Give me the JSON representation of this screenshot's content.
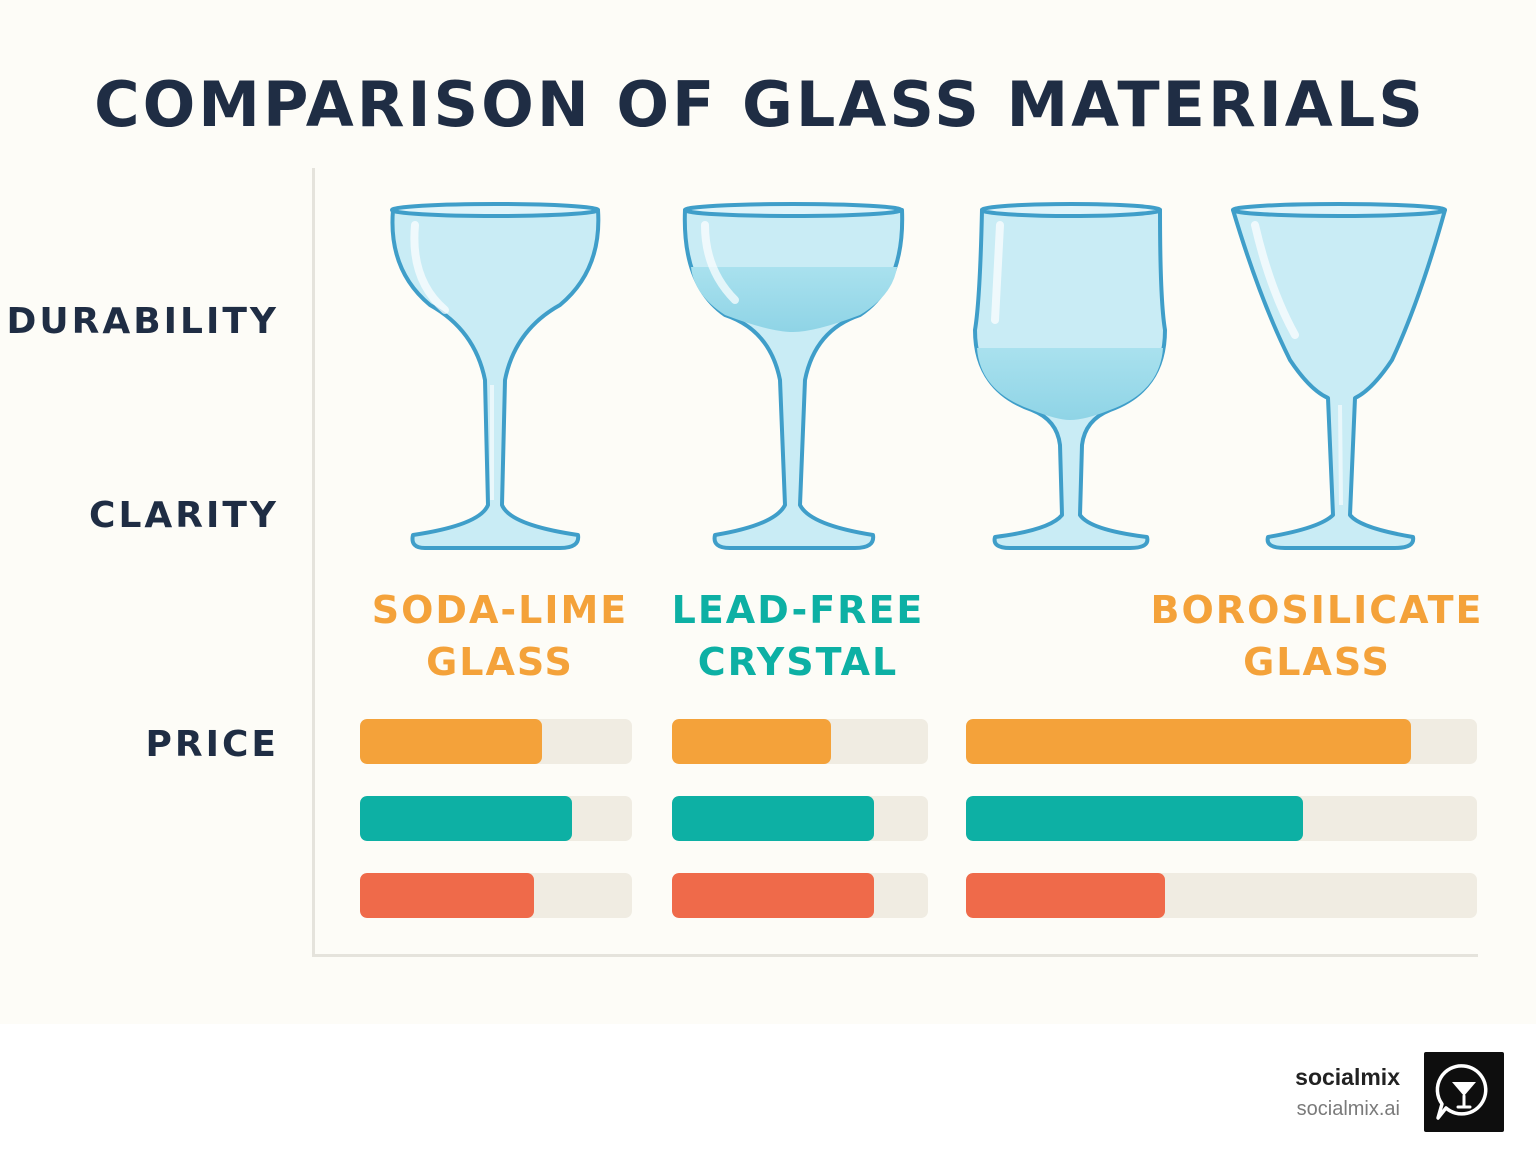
{
  "title": "COMPARISON OF GLASS MATERIALS",
  "chart_data": {
    "type": "bar",
    "row_labels": [
      "DURABILITY",
      "CLARITY",
      "PRICE"
    ],
    "categories": [
      {
        "lines": [
          "SODA-LIME",
          "GLASS"
        ],
        "color": "#f4a23a"
      },
      {
        "lines": [
          "LEAD-FREE",
          "CRYSTAL"
        ],
        "color": "#0db0a4"
      },
      {
        "lines": [],
        "color": ""
      },
      {
        "lines": [
          "BOROSILICATE",
          "GLASS"
        ],
        "color": "#f4a23a"
      }
    ],
    "bar_groups": [
      {
        "values": [
          0.67,
          0.78,
          0.64
        ]
      },
      {
        "values": [
          0.62,
          0.79,
          0.79
        ]
      },
      {
        "values": [
          0.87,
          0.66,
          0.39
        ]
      }
    ],
    "series_colors": [
      "#f4a23a",
      "#0db0a4",
      "#ef6a4a"
    ],
    "track_color": "#f0ece2",
    "grid": false
  },
  "brand": {
    "name": "socialmix",
    "url": "socialmix.ai"
  },
  "icons": {
    "glass": "wine-glass-icon",
    "logo": "cocktail-glass-chat-icon"
  }
}
